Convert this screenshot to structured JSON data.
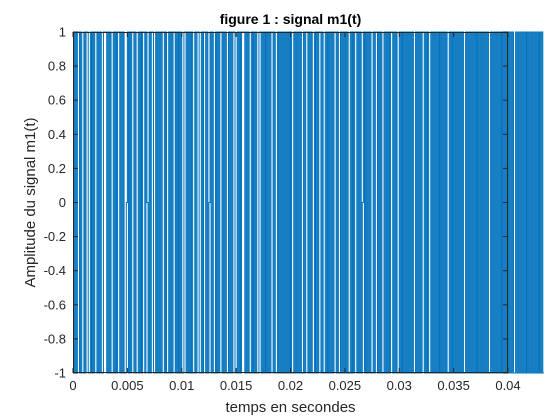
{
  "chart_data": {
    "type": "line",
    "title": "figure 1 : signal m1(t)",
    "xlabel": "temps en secondes",
    "ylabel": "Amplitude du signal m1(t)",
    "xlim": [
      0,
      0.04
    ],
    "ylim": [
      -1,
      1
    ],
    "xticks": [
      0,
      0.005,
      0.01,
      0.015,
      0.02,
      0.025,
      0.03,
      0.035,
      0.04
    ],
    "xtick_labels": [
      "0",
      "0.005",
      "0.01",
      "0.015",
      "0.02",
      "0.025",
      "0.03",
      "0.035",
      "0.04"
    ],
    "yticks": [
      -1,
      -0.8,
      -0.6,
      -0.4,
      -0.2,
      0,
      0.2,
      0.4,
      0.6,
      0.8,
      1
    ],
    "ytick_labels": [
      "-1",
      "-0.8",
      "-0.6",
      "-0.4",
      "-0.2",
      "0",
      "0.2",
      "0.4",
      "0.6",
      "0.8",
      "1"
    ],
    "grid": false,
    "series": [
      {
        "color": "#0072bd",
        "x_step": 0.0001,
        "values": [
          1,
          -1,
          1,
          -1,
          1,
          1,
          -1,
          1,
          -1,
          -1,
          1,
          -1,
          1,
          1,
          -1,
          -1,
          1,
          -1,
          1,
          -1,
          1,
          1,
          -1,
          1,
          -1,
          1,
          -1,
          -1,
          1,
          1,
          1,
          -1,
          1,
          -1,
          1,
          -1,
          -1,
          1,
          -1,
          1,
          -1,
          1,
          1,
          -1,
          1,
          -1,
          1,
          -1,
          -1,
          0,
          1,
          -1,
          1,
          -1,
          1,
          1,
          -1,
          1,
          -1,
          -1,
          1,
          -1,
          1,
          -1,
          1,
          1,
          -1,
          1,
          0,
          -1,
          1,
          -1,
          1,
          1,
          -1,
          -1,
          1,
          -1,
          1,
          -1,
          1,
          -1,
          1,
          1,
          -1,
          1,
          -1,
          -1,
          1,
          -1,
          1,
          -1,
          1,
          1,
          -1,
          1,
          -1,
          1,
          -1,
          1,
          -1,
          -1,
          1,
          1,
          -1,
          1,
          -1,
          1,
          -1,
          1,
          -1,
          -1,
          1,
          -1,
          1,
          1,
          -1,
          -1,
          1,
          -1,
          1,
          1,
          -1,
          1,
          -1,
          0,
          1,
          -1,
          1,
          -1,
          -1,
          1,
          -1,
          1,
          -1,
          1,
          1,
          -1,
          1,
          -1,
          1,
          -1,
          -1,
          1,
          -1,
          1,
          -1,
          1,
          1,
          -1,
          -1,
          1,
          -1,
          1,
          -1,
          1,
          1,
          1,
          -1,
          1,
          -1,
          1,
          -1,
          -1,
          1,
          -1,
          1,
          -1,
          1,
          -1,
          -1,
          1,
          1,
          -1,
          1,
          -1,
          1,
          -1,
          1,
          -1,
          1,
          -1,
          1,
          1,
          -1,
          1,
          -1,
          -1,
          1,
          -1,
          1,
          -1,
          1,
          -1,
          1,
          -1,
          1,
          -1,
          1,
          -1,
          1,
          -1,
          -1,
          1,
          -1,
          1,
          -1,
          1,
          -1,
          1,
          -1,
          -1,
          1,
          -1,
          1,
          1,
          -1,
          1,
          -1,
          1,
          -1,
          -1,
          1,
          -1,
          1,
          -1,
          1,
          1,
          -1,
          1,
          -1,
          -1,
          1,
          -1,
          1,
          -1,
          1,
          -1,
          1,
          -1,
          1,
          1,
          -1,
          1,
          -1,
          -1,
          1,
          -1,
          1,
          -1,
          1,
          -1,
          1,
          -1,
          -1,
          1,
          -1,
          1,
          -1,
          1,
          1,
          -1,
          1,
          -1,
          1,
          -1,
          0,
          1,
          -1,
          1,
          -1,
          1,
          -1,
          1,
          -1,
          -1,
          1,
          -1,
          1,
          1,
          -1,
          1,
          -1,
          1,
          -1,
          -1,
          1,
          -1,
          1,
          -1,
          1,
          -1,
          1,
          1,
          -1,
          1,
          -1,
          1,
          -1,
          -1,
          1,
          -1,
          1,
          -1,
          1,
          -1,
          1,
          -1,
          1,
          -1,
          1,
          -1,
          1,
          -1,
          -1,
          1,
          -1,
          1,
          -1,
          1,
          -1,
          1,
          1,
          -1,
          1,
          -1,
          1,
          -1,
          -1,
          1,
          -1,
          1,
          -1,
          1,
          -1,
          1,
          -1,
          1,
          -1,
          1,
          -1,
          1,
          -1,
          1,
          -1,
          -1,
          1,
          -1,
          1,
          -1,
          1,
          -1,
          1,
          -1,
          1,
          -1,
          1,
          -1,
          1,
          -1,
          -1,
          1,
          -1,
          1,
          -1,
          1,
          -1,
          1,
          -1,
          1,
          -1,
          1,
          -1,
          1,
          -1,
          1,
          -1,
          1,
          -1,
          1,
          -1,
          1,
          -1,
          -1,
          1,
          -1,
          1,
          -1,
          1,
          -1,
          1,
          -1,
          1,
          -1,
          1,
          -1,
          1,
          -1,
          1,
          -1,
          1,
          -1,
          1,
          -1,
          1,
          -1,
          -1,
          1,
          -1,
          1,
          -1,
          1,
          -1,
          1,
          -1,
          1,
          -1,
          1,
          -1,
          1,
          -1,
          1,
          -1,
          1,
          -1,
          1,
          -1,
          1,
          -1,
          1,
          -1,
          1,
          -1
        ]
      }
    ]
  }
}
